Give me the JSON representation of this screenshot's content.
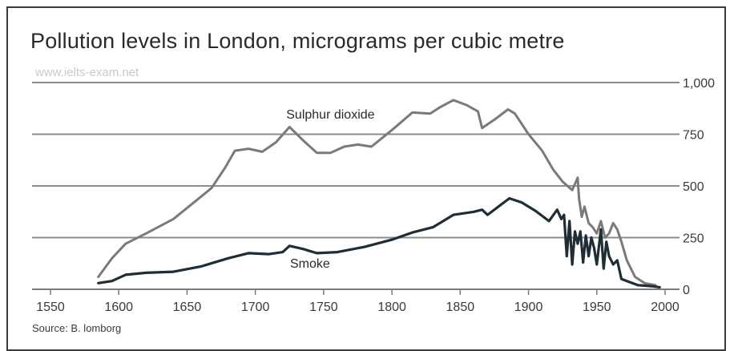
{
  "chart_data": {
    "type": "line",
    "title": "Pollution levels in London, micrograms per cubic metre",
    "watermark": "www.ielts-exam.net",
    "source": "Source: B. lomborg",
    "xlabel": "",
    "ylabel": "",
    "xlim": [
      1550,
      2000
    ],
    "ylim": [
      0,
      1000
    ],
    "x_ticks": [
      1550,
      1600,
      1650,
      1700,
      1750,
      1800,
      1850,
      1900,
      1950,
      2000
    ],
    "y_ticks": [
      0,
      250,
      500,
      750,
      1000
    ],
    "y_tick_labels": [
      "0",
      "250",
      "500",
      "750",
      "1,000"
    ],
    "grid": true,
    "y_axis_side": "right",
    "series": [
      {
        "name": "Sulphur dioxide",
        "color": "#7a7a7a",
        "points": [
          [
            1585,
            60
          ],
          [
            1595,
            150
          ],
          [
            1605,
            220
          ],
          [
            1620,
            270
          ],
          [
            1640,
            340
          ],
          [
            1655,
            420
          ],
          [
            1668,
            490
          ],
          [
            1678,
            590
          ],
          [
            1685,
            670
          ],
          [
            1695,
            680
          ],
          [
            1705,
            665
          ],
          [
            1715,
            710
          ],
          [
            1725,
            785
          ],
          [
            1735,
            720
          ],
          [
            1745,
            660
          ],
          [
            1755,
            660
          ],
          [
            1765,
            690
          ],
          [
            1775,
            700
          ],
          [
            1785,
            690
          ],
          [
            1800,
            770
          ],
          [
            1815,
            855
          ],
          [
            1828,
            850
          ],
          [
            1835,
            880
          ],
          [
            1845,
            915
          ],
          [
            1855,
            890
          ],
          [
            1863,
            860
          ],
          [
            1866,
            780
          ],
          [
            1875,
            820
          ],
          [
            1885,
            870
          ],
          [
            1890,
            850
          ],
          [
            1900,
            750
          ],
          [
            1910,
            670
          ],
          [
            1918,
            580
          ],
          [
            1925,
            520
          ],
          [
            1932,
            480
          ],
          [
            1936,
            540
          ],
          [
            1937,
            440
          ],
          [
            1939,
            350
          ],
          [
            1941,
            400
          ],
          [
            1944,
            320
          ],
          [
            1947,
            300
          ],
          [
            1950,
            270
          ],
          [
            1953,
            330
          ],
          [
            1956,
            250
          ],
          [
            1959,
            270
          ],
          [
            1962,
            320
          ],
          [
            1965,
            290
          ],
          [
            1968,
            230
          ],
          [
            1972,
            140
          ],
          [
            1978,
            60
          ],
          [
            1985,
            30
          ],
          [
            1993,
            20
          ]
        ]
      },
      {
        "name": "Smoke",
        "color": "#1f2d35",
        "points": [
          [
            1585,
            30
          ],
          [
            1595,
            40
          ],
          [
            1605,
            70
          ],
          [
            1620,
            80
          ],
          [
            1640,
            85
          ],
          [
            1660,
            110
          ],
          [
            1680,
            150
          ],
          [
            1695,
            175
          ],
          [
            1710,
            170
          ],
          [
            1720,
            180
          ],
          [
            1725,
            210
          ],
          [
            1735,
            195
          ],
          [
            1745,
            175
          ],
          [
            1760,
            180
          ],
          [
            1780,
            205
          ],
          [
            1800,
            240
          ],
          [
            1815,
            275
          ],
          [
            1830,
            300
          ],
          [
            1845,
            360
          ],
          [
            1860,
            375
          ],
          [
            1866,
            385
          ],
          [
            1870,
            360
          ],
          [
            1880,
            410
          ],
          [
            1886,
            440
          ],
          [
            1895,
            420
          ],
          [
            1905,
            380
          ],
          [
            1915,
            330
          ],
          [
            1921,
            385
          ],
          [
            1924,
            340
          ],
          [
            1926,
            360
          ],
          [
            1928,
            160
          ],
          [
            1930,
            330
          ],
          [
            1932,
            120
          ],
          [
            1934,
            280
          ],
          [
            1936,
            220
          ],
          [
            1938,
            280
          ],
          [
            1940,
            130
          ],
          [
            1942,
            260
          ],
          [
            1944,
            160
          ],
          [
            1946,
            250
          ],
          [
            1948,
            200
          ],
          [
            1950,
            120
          ],
          [
            1953,
            290
          ],
          [
            1955,
            100
          ],
          [
            1957,
            230
          ],
          [
            1959,
            160
          ],
          [
            1962,
            120
          ],
          [
            1965,
            140
          ],
          [
            1968,
            50
          ],
          [
            1972,
            40
          ],
          [
            1980,
            20
          ],
          [
            1990,
            15
          ],
          [
            1996,
            10
          ]
        ]
      }
    ]
  }
}
